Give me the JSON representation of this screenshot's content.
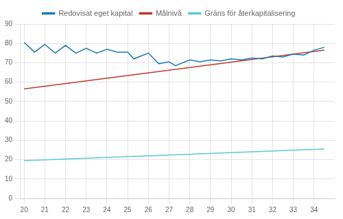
{
  "chart_data": {
    "type": "line",
    "series": [
      {
        "name": "Redovisat eget kapital",
        "color": "#1A7AB8",
        "x": [
          20,
          20.5,
          21,
          21.5,
          22,
          22.5,
          23,
          23.5,
          24,
          24.5,
          25,
          25.3,
          26,
          26.5,
          27,
          27.3,
          28,
          28.5,
          29,
          29.5,
          30,
          30.5,
          31,
          31.5,
          32,
          32.5,
          33,
          33.5,
          34,
          34.5
        ],
        "values": [
          80.5,
          75.5,
          79.5,
          75.0,
          79.0,
          75.0,
          77.5,
          75.0,
          77.0,
          75.5,
          75.5,
          72.0,
          75.0,
          69.5,
          70.5,
          68.5,
          71.5,
          70.5,
          71.5,
          71.0,
          72.0,
          71.5,
          72.5,
          72.0,
          73.5,
          73.0,
          74.5,
          74.0,
          76.5,
          78.0
        ]
      },
      {
        "name": "Målnivå",
        "color": "#C0392B",
        "x": [
          20,
          34.5
        ],
        "values": [
          56.5,
          76.5
        ]
      },
      {
        "name": "Gräns för återkapitalisering",
        "color": "#5BC8D5",
        "x": [
          20,
          34.5
        ],
        "values": [
          19.5,
          25.5
        ]
      }
    ],
    "xlim": [
      19.8,
      35.0
    ],
    "xticks": [
      20,
      21,
      22,
      23,
      24,
      25,
      26,
      27,
      28,
      29,
      30,
      31,
      32,
      33,
      34
    ],
    "ylim": [
      0,
      90
    ],
    "yticks": [
      0,
      10,
      20,
      30,
      40,
      50,
      60,
      70,
      80,
      90
    ],
    "grid": true,
    "legend": "top"
  }
}
